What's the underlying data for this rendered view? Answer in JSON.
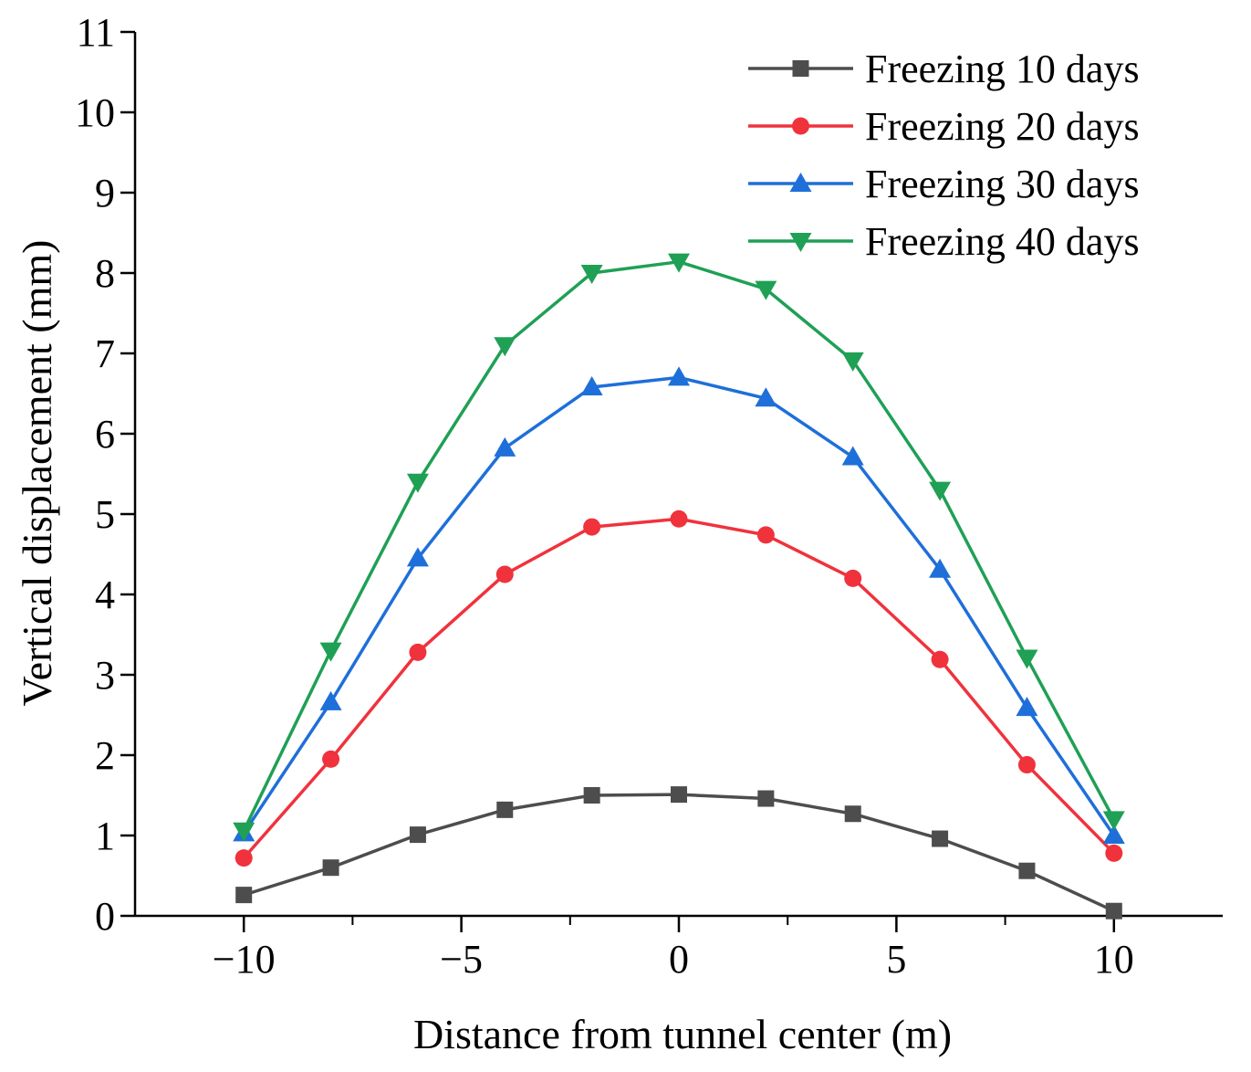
{
  "chart_data": {
    "type": "line",
    "title": "",
    "xlabel": "Distance from tunnel center (m)",
    "ylabel": "Vertical displacement (mm)",
    "xlim": [
      -12.5,
      12.5
    ],
    "ylim": [
      0,
      11
    ],
    "xticks": [
      -10,
      -5,
      0,
      5,
      10
    ],
    "xtick_labels": [
      "−10",
      "−5",
      "0",
      "5",
      "10"
    ],
    "yticks": [
      0,
      1,
      2,
      3,
      4,
      5,
      6,
      7,
      8,
      9,
      10,
      11
    ],
    "ytick_labels": [
      "0",
      "1",
      "2",
      "3",
      "4",
      "5",
      "6",
      "7",
      "8",
      "9",
      "10",
      "11"
    ],
    "grid": false,
    "legend_position": "top-right",
    "x": [
      -10,
      -8,
      -6,
      -4,
      -2,
      0,
      2,
      4,
      6,
      8,
      10
    ],
    "series": [
      {
        "name": "Freezing 10 days",
        "color": "#4d4d4d",
        "marker": "square",
        "values": [
          0.26,
          0.6,
          1.01,
          1.32,
          1.5,
          1.51,
          1.46,
          1.27,
          0.96,
          0.56,
          0.06
        ]
      },
      {
        "name": "Freezing 20 days",
        "color": "#f0323c",
        "marker": "circle",
        "values": [
          0.72,
          1.95,
          3.28,
          4.25,
          4.84,
          4.94,
          4.74,
          4.2,
          3.19,
          1.88,
          0.78
        ]
      },
      {
        "name": "Freezing 30 days",
        "color": "#1e6fd9",
        "marker": "triangle-up",
        "values": [
          1.03,
          2.66,
          4.45,
          5.82,
          6.58,
          6.7,
          6.44,
          5.71,
          4.31,
          2.59,
          1.0
        ]
      },
      {
        "name": "Freezing 40 days",
        "color": "#1fa055",
        "marker": "triangle-down",
        "values": [
          1.06,
          3.3,
          5.4,
          7.1,
          8.0,
          8.14,
          7.8,
          6.91,
          5.3,
          3.21,
          1.2
        ]
      }
    ]
  }
}
